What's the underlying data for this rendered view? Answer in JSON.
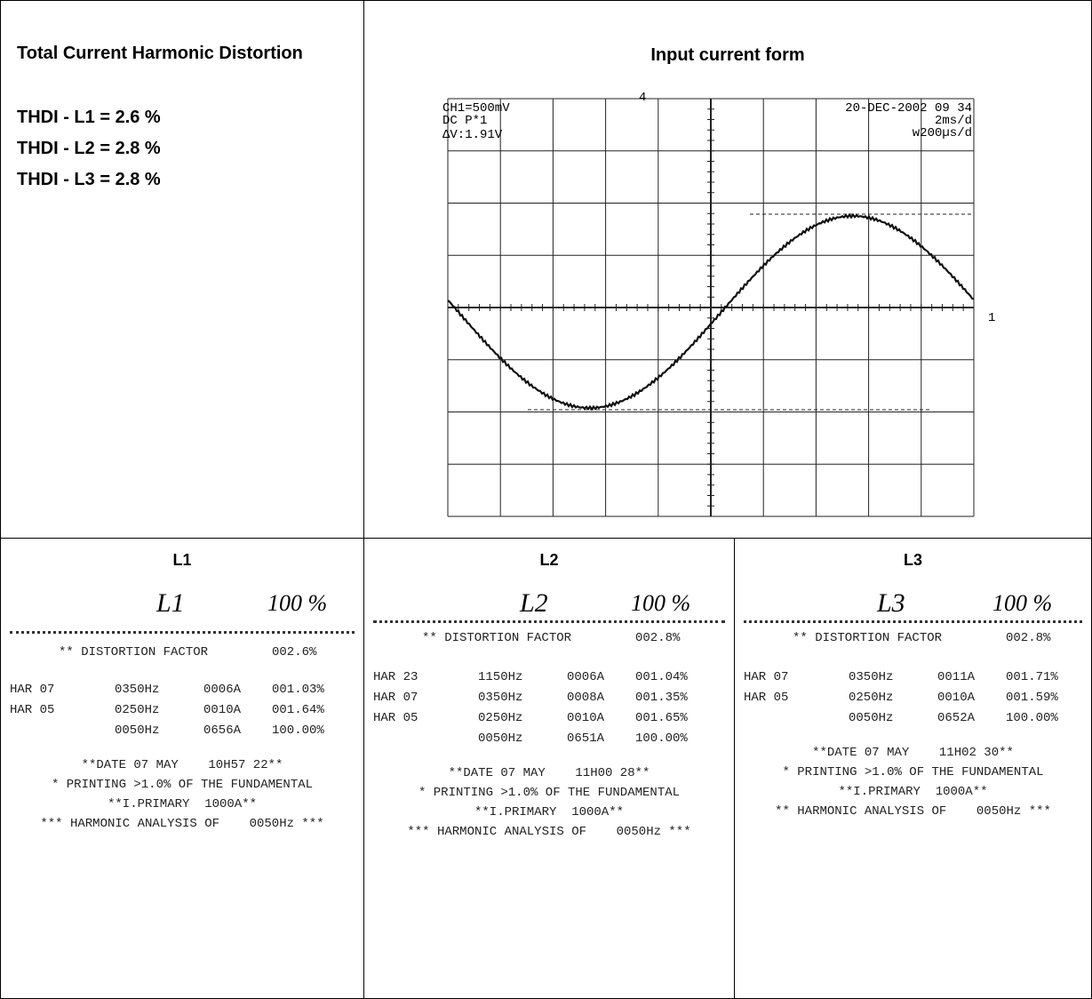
{
  "summary": {
    "title": "Total Current Harmonic Distortion",
    "lines": [
      "THDI - L1 = 2.6 %",
      "THDI - L2 = 2.8 %",
      "THDI - L3 = 2.8 %"
    ]
  },
  "waveform": {
    "title": "Input current form",
    "scope_left": [
      "CH1=500mV",
      "DC P*1",
      "ΔV:1.91V"
    ],
    "scope_right": [
      "20-DEC-2002 09 34",
      "2ms/d",
      "w200µs/d"
    ],
    "trigger": "4",
    "channel_marker": "1"
  },
  "printouts": [
    {
      "title": "L1",
      "hand_label": "L1",
      "hand_percent": "100 %",
      "distortion_label": "** DISTORTION FACTOR",
      "distortion_value": "002.6%",
      "harmonics": [
        {
          "har": "HAR 07",
          "freq": "0350Hz",
          "current": "0006A",
          "percent": "001.03%"
        },
        {
          "har": "HAR 05",
          "freq": "0250Hz",
          "current": "0010A",
          "percent": "001.64%"
        },
        {
          "freq": "0050Hz",
          "current": "0656A",
          "percent": "100.00%"
        }
      ],
      "footer": [
        "**DATE 07 MAY    10H57 22**",
        "* PRINTING >1.0% OF THE FUNDAMENTAL",
        "**I.PRIMARY  1000A**",
        "*** HARMONIC ANALYSIS OF    0050Hz ***"
      ]
    },
    {
      "title": "L2",
      "hand_label": "L2",
      "hand_percent": "100 %",
      "distortion_label": "** DISTORTION FACTOR",
      "distortion_value": "002.8%",
      "harmonics": [
        {
          "har": "HAR 23",
          "freq": "1150Hz",
          "current": "0006A",
          "percent": "001.04%"
        },
        {
          "har": "HAR 07",
          "freq": "0350Hz",
          "current": "0008A",
          "percent": "001.35%"
        },
        {
          "har": "HAR 05",
          "freq": "0250Hz",
          "current": "0010A",
          "percent": "001.65%"
        },
        {
          "freq": "0050Hz",
          "current": "0651A",
          "percent": "100.00%"
        }
      ],
      "footer": [
        "**DATE 07 MAY    11H00 28**",
        "* PRINTING >1.0% OF THE FUNDAMENTAL",
        "**I.PRIMARY  1000A**",
        "*** HARMONIC ANALYSIS OF    0050Hz ***"
      ]
    },
    {
      "title": "L3",
      "hand_label": "L3",
      "hand_percent": "100 %",
      "distortion_label": "** DISTORTION FACTOR",
      "distortion_value": "002.8%",
      "harmonics": [
        {
          "har": "HAR 07",
          "freq": "0350Hz",
          "current": "0011A",
          "percent": "001.71%"
        },
        {
          "har": "HAR 05",
          "freq": "0250Hz",
          "current": "0010A",
          "percent": "001.59%"
        },
        {
          "freq": "0050Hz",
          "current": "0652A",
          "percent": "100.00%"
        }
      ],
      "footer": [
        "**DATE 07 MAY    11H02 30**",
        "* PRINTING >1.0% OF THE FUNDAMENTAL",
        "**I.PRIMARY  1000A**",
        "** HARMONIC ANALYSIS OF    0050Hz ***"
      ]
    }
  ]
}
